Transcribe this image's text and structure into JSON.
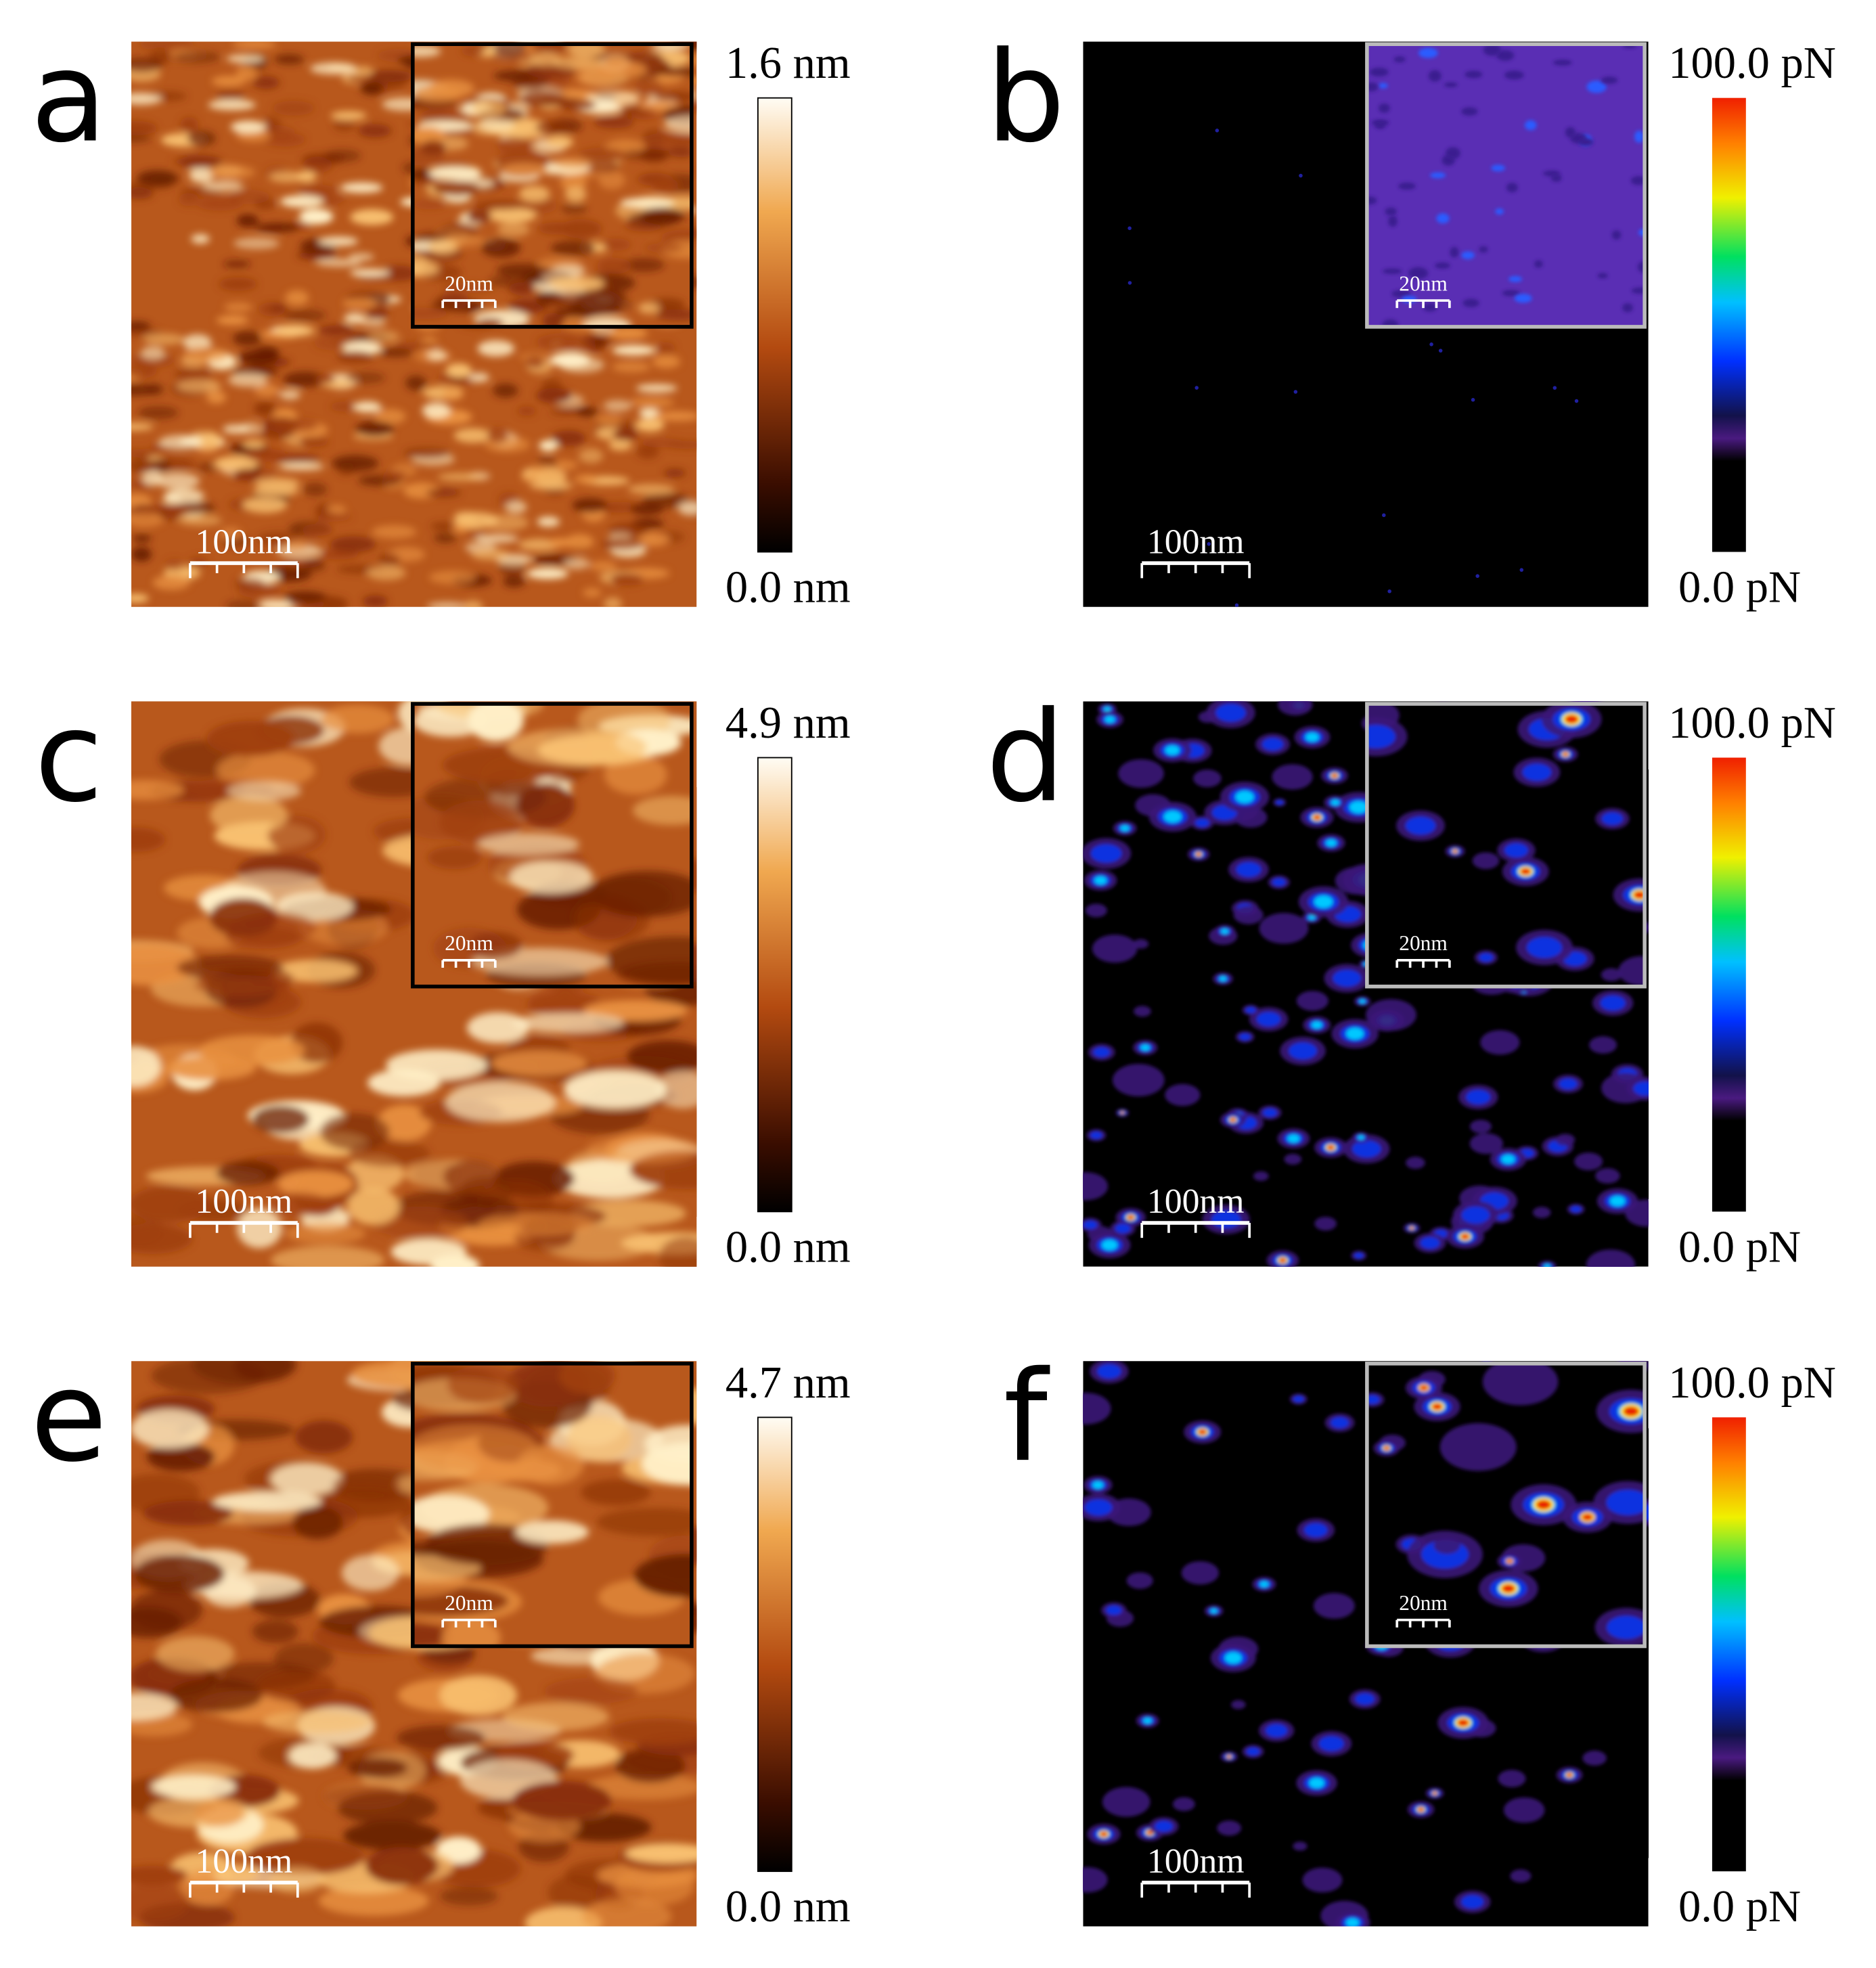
{
  "panels": [
    {
      "label": "a",
      "scale_bar": "100nm",
      "inset_scale_bar": "20nm",
      "colorbar_max": "1.6 nm",
      "colorbar_min": "0.0 nm"
    },
    {
      "label": "b",
      "scale_bar": "100nm",
      "inset_scale_bar": "20nm",
      "colorbar_max": "100.0 pN",
      "colorbar_min": "0.0 pN"
    },
    {
      "label": "c",
      "scale_bar": "100nm",
      "inset_scale_bar": "20nm",
      "colorbar_max": "4.9 nm",
      "colorbar_min": "0.0 nm"
    },
    {
      "label": "d",
      "scale_bar": "100nm",
      "inset_scale_bar": "20nm",
      "colorbar_max": "100.0 pN",
      "colorbar_min": "0.0 pN"
    },
    {
      "label": "e",
      "scale_bar": "100nm",
      "inset_scale_bar": "20nm",
      "colorbar_max": "4.7 nm",
      "colorbar_min": "0.0 nm"
    },
    {
      "label": "f",
      "scale_bar": "100nm",
      "inset_scale_bar": "20nm",
      "colorbar_max": "100.0 pN",
      "colorbar_min": "0.0 pN"
    }
  ]
}
